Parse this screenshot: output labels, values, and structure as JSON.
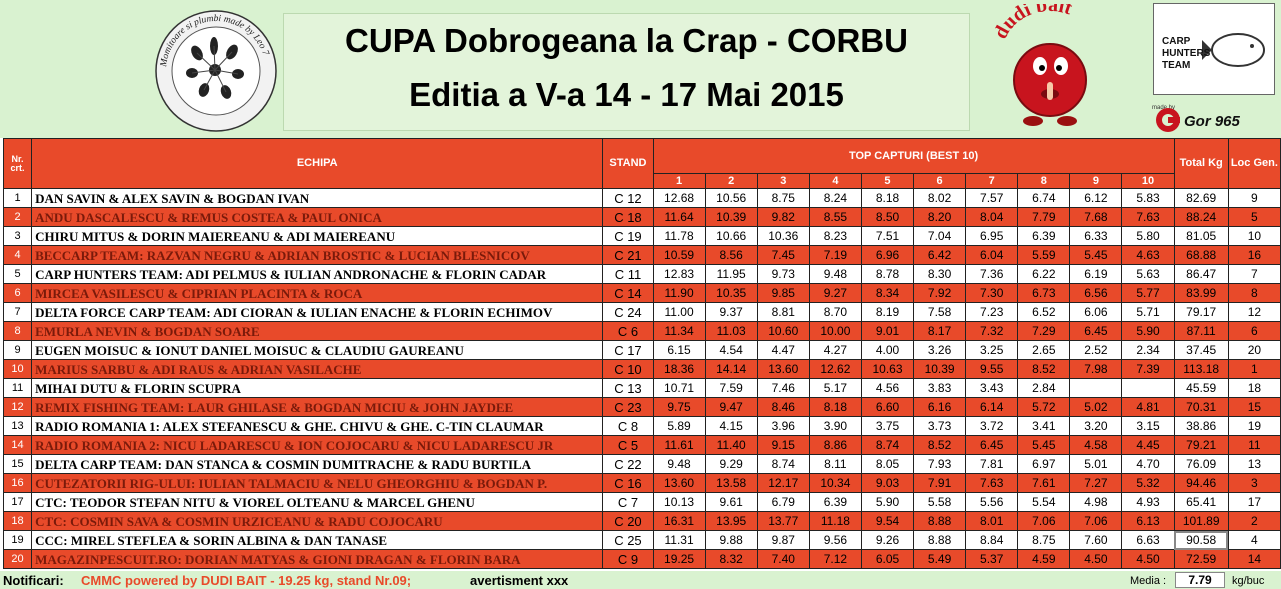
{
  "header": {
    "title_line1": "CUPA Dobrogeana la Crap - CORBU",
    "title_line2": "Editia a V-a 14 - 17 Mai 2015",
    "seal_text": "Momitoare si plumbi made by Leo 7"
  },
  "logos": {
    "dudi_bait": "dudi bait",
    "carp_hunters": "CARP HUNTERS TEAM",
    "gor_made_by": "made by",
    "gor_name": "Gor 965"
  },
  "colors": {
    "accent_red": "#e84a2a",
    "header_green": "#d9f2d0",
    "dudi_red": "#c8141e"
  },
  "table": {
    "headers": {
      "nr": "Nr. crt.",
      "team": "ECHIPA",
      "stand": "STAND",
      "top": "TOP CAPTURI (BEST 10)",
      "total": "Total Kg",
      "loc": "Loc Gen."
    },
    "capture_columns": [
      "1",
      "2",
      "3",
      "4",
      "5",
      "6",
      "7",
      "8",
      "9",
      "10"
    ],
    "rows": [
      {
        "nr": "1",
        "team": "DAN SAVIN & ALEX SAVIN & BOGDAN IVAN",
        "stand": "C 12",
        "catches": [
          "12.68",
          "10.56",
          "8.75",
          "8.24",
          "8.18",
          "8.02",
          "7.57",
          "6.74",
          "6.12",
          "5.83"
        ],
        "total": "82.69",
        "loc": "9"
      },
      {
        "nr": "2",
        "team": "ANDU DASCALESCU & REMUS COSTEA & PAUL ONICA",
        "stand": "C 18",
        "catches": [
          "11.64",
          "10.39",
          "9.82",
          "8.55",
          "8.50",
          "8.20",
          "8.04",
          "7.79",
          "7.68",
          "7.63"
        ],
        "total": "88.24",
        "loc": "5"
      },
      {
        "nr": "3",
        "team": "CHIRU MITUS & DORIN MAIEREANU & ADI MAIEREANU",
        "stand": "C 19",
        "catches": [
          "11.78",
          "10.66",
          "10.36",
          "8.23",
          "7.51",
          "7.04",
          "6.95",
          "6.39",
          "6.33",
          "5.80"
        ],
        "total": "81.05",
        "loc": "10"
      },
      {
        "nr": "4",
        "team": "BECCARP TEAM: RAZVAN NEGRU & ADRIAN BROSTIC & LUCIAN BLESNICOV",
        "stand": "C 21",
        "catches": [
          "10.59",
          "8.56",
          "7.45",
          "7.19",
          "6.96",
          "6.42",
          "6.04",
          "5.59",
          "5.45",
          "4.63"
        ],
        "total": "68.88",
        "loc": "16"
      },
      {
        "nr": "5",
        "team": "CARP HUNTERS TEAM: ADI PELMUS & IULIAN ANDRONACHE & FLORIN CADAR",
        "stand": "C 11",
        "catches": [
          "12.83",
          "11.95",
          "9.73",
          "9.48",
          "8.78",
          "8.30",
          "7.36",
          "6.22",
          "6.19",
          "5.63"
        ],
        "total": "86.47",
        "loc": "7"
      },
      {
        "nr": "6",
        "team": "MIRCEA VASILESCU & CIPRIAN PLACINTA & ROCA",
        "stand": "C 14",
        "catches": [
          "11.90",
          "10.35",
          "9.85",
          "9.27",
          "8.34",
          "7.92",
          "7.30",
          "6.73",
          "6.56",
          "5.77"
        ],
        "total": "83.99",
        "loc": "8"
      },
      {
        "nr": "7",
        "team": "DELTA FORCE CARP TEAM: ADI CIORAN & IULIAN ENACHE & FLORIN ECHIMOV",
        "stand": "C 24",
        "catches": [
          "11.00",
          "9.37",
          "8.81",
          "8.70",
          "8.19",
          "7.58",
          "7.23",
          "6.52",
          "6.06",
          "5.71"
        ],
        "total": "79.17",
        "loc": "12"
      },
      {
        "nr": "8",
        "team": "EMURLA NEVIN & BOGDAN SOARE",
        "stand": "C 6",
        "catches": [
          "11.34",
          "11.03",
          "10.60",
          "10.00",
          "9.01",
          "8.17",
          "7.32",
          "7.29",
          "6.45",
          "5.90"
        ],
        "total": "87.11",
        "loc": "6"
      },
      {
        "nr": "9",
        "team": "EUGEN MOISUC & IONUT DANIEL MOISUC & CLAUDIU GAUREANU",
        "stand": "C 17",
        "catches": [
          "6.15",
          "4.54",
          "4.47",
          "4.27",
          "4.00",
          "3.26",
          "3.25",
          "2.65",
          "2.52",
          "2.34"
        ],
        "total": "37.45",
        "loc": "20"
      },
      {
        "nr": "10",
        "team": "MARIUS SARBU & ADI RAUS & ADRIAN VASILACHE",
        "stand": "C 10",
        "catches": [
          "18.36",
          "14.14",
          "13.60",
          "12.62",
          "10.63",
          "10.39",
          "9.55",
          "8.52",
          "7.98",
          "7.39"
        ],
        "total": "113.18",
        "loc": "1"
      },
      {
        "nr": "11",
        "team": "MIHAI DUTU & FLORIN SCUPRA",
        "stand": "C 13",
        "catches": [
          "10.71",
          "7.59",
          "7.46",
          "5.17",
          "4.56",
          "3.83",
          "3.43",
          "2.84",
          "",
          ""
        ],
        "total": "45.59",
        "loc": "18"
      },
      {
        "nr": "12",
        "team": "REMIX FISHING TEAM: LAUR GHILASE & BOGDAN MICIU & JOHN JAYDEE",
        "stand": "C 23",
        "catches": [
          "9.75",
          "9.47",
          "8.46",
          "8.18",
          "6.60",
          "6.16",
          "6.14",
          "5.72",
          "5.02",
          "4.81"
        ],
        "total": "70.31",
        "loc": "15"
      },
      {
        "nr": "13",
        "team": "RADIO ROMANIA 1: ALEX STEFANESCU & GHE. CHIVU & GHE. C-TIN CLAUMAR",
        "stand": "C 8",
        "catches": [
          "5.89",
          "4.15",
          "3.96",
          "3.90",
          "3.75",
          "3.73",
          "3.72",
          "3.41",
          "3.20",
          "3.15"
        ],
        "total": "38.86",
        "loc": "19"
      },
      {
        "nr": "14",
        "team": "RADIO ROMANIA 2: NICU LADARESCU & ION COJOCARU & NICU LADARESCU JR",
        "stand": "C 5",
        "catches": [
          "11.61",
          "11.40",
          "9.15",
          "8.86",
          "8.74",
          "8.52",
          "6.45",
          "5.45",
          "4.58",
          "4.45"
        ],
        "total": "79.21",
        "loc": "11"
      },
      {
        "nr": "15",
        "team": "DELTA CARP TEAM: DAN STANCA & COSMIN DUMITRACHE & RADU BURTILA",
        "stand": "C 22",
        "catches": [
          "9.48",
          "9.29",
          "8.74",
          "8.11",
          "8.05",
          "7.93",
          "7.81",
          "6.97",
          "5.01",
          "4.70"
        ],
        "total": "76.09",
        "loc": "13"
      },
      {
        "nr": "16",
        "team": "CUTEZATORII RIG-ULUI: IULIAN TALMACIU & NELU GHEORGHIU & BOGDAN P.",
        "stand": "C 16",
        "catches": [
          "13.60",
          "13.58",
          "12.17",
          "10.34",
          "9.03",
          "7.91",
          "7.63",
          "7.61",
          "7.27",
          "5.32"
        ],
        "total": "94.46",
        "loc": "3"
      },
      {
        "nr": "17",
        "team": "CTC: TEODOR STEFAN NITU & VIOREL OLTEANU & MARCEL GHENU",
        "stand": "C 7",
        "catches": [
          "10.13",
          "9.61",
          "6.79",
          "6.39",
          "5.90",
          "5.58",
          "5.56",
          "5.54",
          "4.98",
          "4.93"
        ],
        "total": "65.41",
        "loc": "17"
      },
      {
        "nr": "18",
        "team": "CTC: COSMIN SAVA & COSMIN URZICEANU & RADU COJOCARU",
        "stand": "C 20",
        "catches": [
          "16.31",
          "13.95",
          "13.77",
          "11.18",
          "9.54",
          "8.88",
          "8.01",
          "7.06",
          "7.06",
          "6.13"
        ],
        "total": "101.89",
        "loc": "2"
      },
      {
        "nr": "19",
        "team": "CCC: MIREL STEFLEA & SORIN ALBINA & DAN TANASE",
        "stand": "C 25",
        "catches": [
          "11.31",
          "9.88",
          "9.87",
          "9.56",
          "9.26",
          "8.88",
          "8.84",
          "8.75",
          "7.60",
          "6.63"
        ],
        "total": "90.58",
        "loc": "4"
      },
      {
        "nr": "20",
        "team": "MAGAZINPESCUIT.RO: DORIAN MATYAS & GIONI DRAGAN & FLORIN BARA",
        "stand": "C 9",
        "catches": [
          "19.25",
          "8.32",
          "7.40",
          "7.12",
          "6.05",
          "5.49",
          "5.37",
          "4.59",
          "4.50",
          "4.50"
        ],
        "total": "72.59",
        "loc": "14"
      }
    ]
  },
  "footer": {
    "notif_label": "Notificari:",
    "notif_text": "CMMC powered by DUDI BAIT - 19.25 kg, stand Nr.09;",
    "warning": "avertisment xxx",
    "media_label": "Media :",
    "media_value": "7.79",
    "media_unit": "kg/buc"
  }
}
